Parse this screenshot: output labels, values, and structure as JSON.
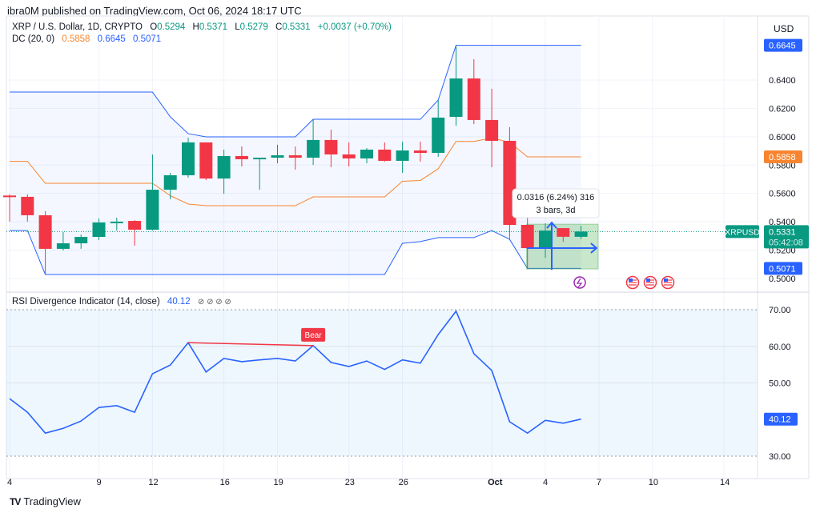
{
  "header": {
    "published": "ibra0M published on TradingView.com, Oct 06, 2024 18:17 UTC",
    "symbol_title": "XRP / U.S. Dollar, 1D, CRYPTO",
    "ohlc": {
      "o_label": "O",
      "o": "0.5294",
      "h_label": "H",
      "h": "0.5371",
      "l_label": "L",
      "l": "0.5279",
      "c_label": "C",
      "c": "0.5331",
      "change": "+0.0037 (+0.70%)"
    },
    "dc": {
      "label": "DC (20, 0)",
      "basis": "0.5858",
      "upper": "0.6645",
      "lower": "0.5071"
    },
    "currency": "USD"
  },
  "rsi_legend": {
    "label": "RSI Divergence Indicator (14, close)",
    "value": "40.12",
    "icons": "⊘ ⊘ ⊘ ⊘"
  },
  "colors": {
    "up": "#089981",
    "down": "#f23645",
    "dc_band": "#2962ff",
    "dc_basis": "#f7852f",
    "rsi": "#2962ff",
    "bear": "#f23645",
    "measure": "#2962ff"
  },
  "price_axis": {
    "ticks": [
      0.64,
      0.62,
      0.6,
      0.58,
      0.56,
      0.54,
      0.52,
      0.5
    ],
    "badges": [
      {
        "text": "0.6645",
        "value": 0.6645,
        "color": "#2962ff"
      },
      {
        "text": "0.5858",
        "value": 0.5858,
        "color": "#f7852f"
      },
      {
        "text": "0.5071",
        "value": 0.5071,
        "color": "#2962ff"
      }
    ],
    "last": {
      "symbol": "XRPUSD",
      "price": "0.5331",
      "countdown": "05:42:08",
      "value": 0.5331
    }
  },
  "rsi_axis": {
    "ticks": [
      70,
      60,
      50,
      30
    ],
    "current": "40.12",
    "current_value": 40.12
  },
  "time_axis": [
    {
      "label": "4",
      "day": 0
    },
    {
      "label": "9",
      "day": 5
    },
    {
      "label": "12",
      "day": 8
    },
    {
      "label": "16",
      "day": 12
    },
    {
      "label": "19",
      "day": 15
    },
    {
      "label": "23",
      "day": 19
    },
    {
      "label": "26",
      "day": 22
    },
    {
      "label": "Oct",
      "day": 27,
      "bold": true
    },
    {
      "label": "4",
      "day": 30
    },
    {
      "label": "7",
      "day": 33
    },
    {
      "label": "10",
      "day": 36
    },
    {
      "label": "14",
      "day": 40
    }
  ],
  "chart_data": {
    "type": "candlestick",
    "dates": [
      "Sep 4",
      "Sep 5",
      "Sep 6",
      "Sep 7",
      "Sep 8",
      "Sep 9",
      "Sep 10",
      "Sep 11",
      "Sep 12",
      "Sep 13",
      "Sep 14",
      "Sep 15",
      "Sep 16",
      "Sep 17",
      "Sep 18",
      "Sep 19",
      "Sep 20",
      "Sep 21",
      "Sep 22",
      "Sep 23",
      "Sep 24",
      "Sep 25",
      "Sep 26",
      "Sep 27",
      "Sep 28",
      "Sep 29",
      "Sep 30",
      "Oct 1",
      "Oct 2",
      "Oct 3",
      "Oct 4",
      "Oct 5",
      "Oct 6"
    ],
    "ohlc": [
      [
        0.5585,
        0.5593,
        0.5401,
        0.5576
      ],
      [
        0.5576,
        0.5593,
        0.5401,
        0.5446
      ],
      [
        0.5446,
        0.5474,
        0.5028,
        0.5209
      ],
      [
        0.5209,
        0.5327,
        0.5197,
        0.5248
      ],
      [
        0.5248,
        0.531,
        0.5209,
        0.5293
      ],
      [
        0.5293,
        0.5423,
        0.5271,
        0.5395
      ],
      [
        0.5395,
        0.5429,
        0.5338,
        0.5401
      ],
      [
        0.5406,
        0.5412,
        0.5231,
        0.5344
      ],
      [
        0.5344,
        0.5875,
        0.5338,
        0.5626
      ],
      [
        0.5626,
        0.5745,
        0.5559,
        0.5728
      ],
      [
        0.5728,
        0.5993,
        0.5711,
        0.596
      ],
      [
        0.596,
        0.596,
        0.5694,
        0.5705
      ],
      [
        0.5705,
        0.5909,
        0.5598,
        0.5864
      ],
      [
        0.5864,
        0.5931,
        0.579,
        0.5841
      ],
      [
        0.5841,
        0.5852,
        0.5626,
        0.5852
      ],
      [
        0.5852,
        0.5943,
        0.5813,
        0.5869
      ],
      [
        0.5869,
        0.5931,
        0.5768,
        0.5852
      ],
      [
        0.5852,
        0.6123,
        0.5801,
        0.5977
      ],
      [
        0.5977,
        0.605,
        0.5785,
        0.5875
      ],
      [
        0.5875,
        0.596,
        0.579,
        0.5847
      ],
      [
        0.5847,
        0.592,
        0.5813,
        0.5909
      ],
      [
        0.5909,
        0.596,
        0.5824,
        0.583
      ],
      [
        0.583,
        0.5965,
        0.5745,
        0.5903
      ],
      [
        0.5903,
        0.5965,
        0.5824,
        0.5886
      ],
      [
        0.5886,
        0.6259,
        0.5858,
        0.6135
      ],
      [
        0.614,
        0.6643,
        0.6078,
        0.6411
      ],
      [
        0.6411,
        0.6547,
        0.6089,
        0.6118
      ],
      [
        0.6118,
        0.6338,
        0.5785,
        0.5971
      ],
      [
        0.5971,
        0.6067,
        0.5276,
        0.5378
      ],
      [
        0.5378,
        0.544,
        0.5067,
        0.5214
      ],
      [
        0.5214,
        0.5389,
        0.5146,
        0.5338
      ],
      [
        0.5355,
        0.535,
        0.5259,
        0.5294
      ],
      [
        0.5294,
        0.5371,
        0.5279,
        0.5331
      ]
    ],
    "dc_upper": [
      0.6315,
      0.6315,
      0.6315,
      0.6315,
      0.6315,
      0.6315,
      0.6315,
      0.6315,
      0.6315,
      0.614,
      0.6022,
      0.5999,
      0.5999,
      0.5999,
      0.5999,
      0.5999,
      0.5999,
      0.6123,
      0.6123,
      0.6123,
      0.6123,
      0.6123,
      0.6123,
      0.6123,
      0.6259,
      0.6645,
      0.6645,
      0.6645,
      0.6645,
      0.6645,
      0.6645,
      0.6645,
      0.6645
    ],
    "dc_lower": [
      0.5338,
      0.5338,
      0.5028,
      0.5028,
      0.5028,
      0.5028,
      0.5028,
      0.5028,
      0.5028,
      0.5028,
      0.5028,
      0.5028,
      0.5028,
      0.5028,
      0.5028,
      0.5028,
      0.5028,
      0.5028,
      0.5028,
      0.5028,
      0.5028,
      0.5028,
      0.5248,
      0.526,
      0.5288,
      0.5288,
      0.5288,
      0.5338,
      0.5276,
      0.5071,
      0.5071,
      0.5071,
      0.5071
    ],
    "rsi": [
      45.7,
      42,
      36.3,
      37.6,
      39.6,
      43.3,
      43.8,
      42,
      52.5,
      54.9,
      61,
      53,
      56.7,
      55.8,
      56.3,
      56.7,
      56,
      60.2,
      55.6,
      54.5,
      56,
      53.7,
      56.3,
      55.4,
      63.2,
      69.6,
      58,
      53.4,
      39.4,
      36.3,
      39.8,
      39,
      40.12
    ],
    "rsi_levels": [
      70,
      30
    ],
    "bear_divergence": {
      "from_day": 10,
      "to_day": 17,
      "label": "Bear"
    },
    "measure": {
      "from_day": 29,
      "to_day": 32,
      "low": 0.5067,
      "high": 0.5383,
      "line1": "0.0316 (6.24%) 316",
      "line2": "3 bars, 3d"
    },
    "price_range": [
      0.49,
      0.68
    ],
    "rsi_range": [
      25,
      75
    ]
  },
  "footer": {
    "logo_mark": "TV",
    "brand": "TradingView"
  }
}
